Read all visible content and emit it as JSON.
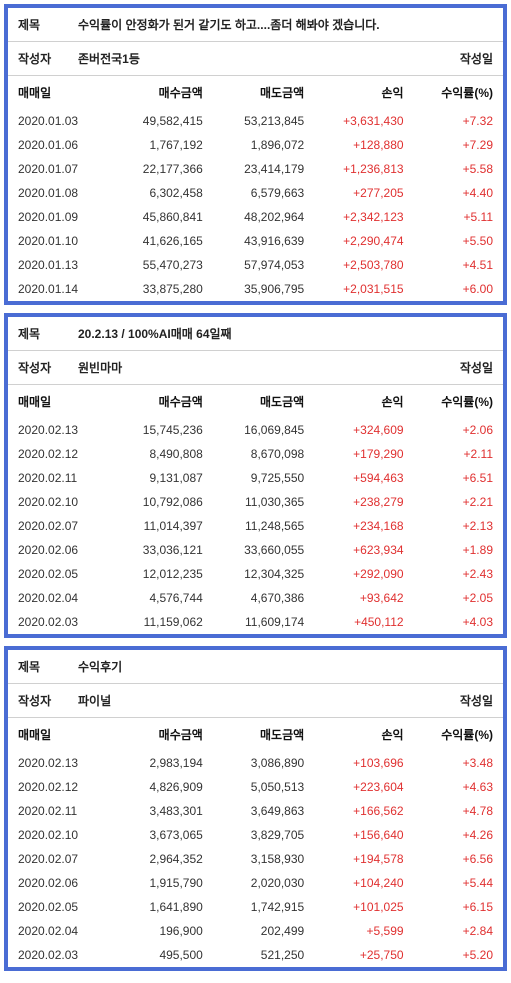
{
  "meta_labels": {
    "title": "제목",
    "author": "작성자",
    "created": "작성일"
  },
  "columns": {
    "date": "매매일",
    "buy": "매수금액",
    "sell": "매도금액",
    "profit": "손익",
    "rate": "수익률(%)"
  },
  "panels": [
    {
      "title": "수익률이 안정화가 된거 같기도 하고....좀더 해봐야 겠습니다.",
      "author": "존버전국1등",
      "rows": [
        {
          "date": "2020.01.03",
          "buy": "49,582,415",
          "sell": "53,213,845",
          "profit": "+3,631,430",
          "rate": "+7.32"
        },
        {
          "date": "2020.01.06",
          "buy": "1,767,192",
          "sell": "1,896,072",
          "profit": "+128,880",
          "rate": "+7.29"
        },
        {
          "date": "2020.01.07",
          "buy": "22,177,366",
          "sell": "23,414,179",
          "profit": "+1,236,813",
          "rate": "+5.58"
        },
        {
          "date": "2020.01.08",
          "buy": "6,302,458",
          "sell": "6,579,663",
          "profit": "+277,205",
          "rate": "+4.40"
        },
        {
          "date": "2020.01.09",
          "buy": "45,860,841",
          "sell": "48,202,964",
          "profit": "+2,342,123",
          "rate": "+5.11"
        },
        {
          "date": "2020.01.10",
          "buy": "41,626,165",
          "sell": "43,916,639",
          "profit": "+2,290,474",
          "rate": "+5.50"
        },
        {
          "date": "2020.01.13",
          "buy": "55,470,273",
          "sell": "57,974,053",
          "profit": "+2,503,780",
          "rate": "+4.51"
        },
        {
          "date": "2020.01.14",
          "buy": "33,875,280",
          "sell": "35,906,795",
          "profit": "+2,031,515",
          "rate": "+6.00"
        }
      ]
    },
    {
      "title": "20.2.13 / 100%AI매매 64일째",
      "author": "원빈마마",
      "rows": [
        {
          "date": "2020.02.13",
          "buy": "15,745,236",
          "sell": "16,069,845",
          "profit": "+324,609",
          "rate": "+2.06"
        },
        {
          "date": "2020.02.12",
          "buy": "8,490,808",
          "sell": "8,670,098",
          "profit": "+179,290",
          "rate": "+2.11"
        },
        {
          "date": "2020.02.11",
          "buy": "9,131,087",
          "sell": "9,725,550",
          "profit": "+594,463",
          "rate": "+6.51"
        },
        {
          "date": "2020.02.10",
          "buy": "10,792,086",
          "sell": "11,030,365",
          "profit": "+238,279",
          "rate": "+2.21"
        },
        {
          "date": "2020.02.07",
          "buy": "11,014,397",
          "sell": "11,248,565",
          "profit": "+234,168",
          "rate": "+2.13"
        },
        {
          "date": "2020.02.06",
          "buy": "33,036,121",
          "sell": "33,660,055",
          "profit": "+623,934",
          "rate": "+1.89"
        },
        {
          "date": "2020.02.05",
          "buy": "12,012,235",
          "sell": "12,304,325",
          "profit": "+292,090",
          "rate": "+2.43"
        },
        {
          "date": "2020.02.04",
          "buy": "4,576,744",
          "sell": "4,670,386",
          "profit": "+93,642",
          "rate": "+2.05"
        },
        {
          "date": "2020.02.03",
          "buy": "11,159,062",
          "sell": "11,609,174",
          "profit": "+450,112",
          "rate": "+4.03"
        }
      ]
    },
    {
      "title": "수익후기",
      "author": "파이널",
      "rows": [
        {
          "date": "2020.02.13",
          "buy": "2,983,194",
          "sell": "3,086,890",
          "profit": "+103,696",
          "rate": "+3.48"
        },
        {
          "date": "2020.02.12",
          "buy": "4,826,909",
          "sell": "5,050,513",
          "profit": "+223,604",
          "rate": "+4.63"
        },
        {
          "date": "2020.02.11",
          "buy": "3,483,301",
          "sell": "3,649,863",
          "profit": "+166,562",
          "rate": "+4.78"
        },
        {
          "date": "2020.02.10",
          "buy": "3,673,065",
          "sell": "3,829,705",
          "profit": "+156,640",
          "rate": "+4.26"
        },
        {
          "date": "2020.02.07",
          "buy": "2,964,352",
          "sell": "3,158,930",
          "profit": "+194,578",
          "rate": "+6.56"
        },
        {
          "date": "2020.02.06",
          "buy": "1,915,790",
          "sell": "2,020,030",
          "profit": "+104,240",
          "rate": "+5.44"
        },
        {
          "date": "2020.02.05",
          "buy": "1,641,890",
          "sell": "1,742,915",
          "profit": "+101,025",
          "rate": "+6.15"
        },
        {
          "date": "2020.02.04",
          "buy": "196,900",
          "sell": "202,499",
          "profit": "+5,599",
          "rate": "+2.84"
        },
        {
          "date": "2020.02.03",
          "buy": "495,500",
          "sell": "521,250",
          "profit": "+25,750",
          "rate": "+5.20"
        }
      ]
    }
  ]
}
